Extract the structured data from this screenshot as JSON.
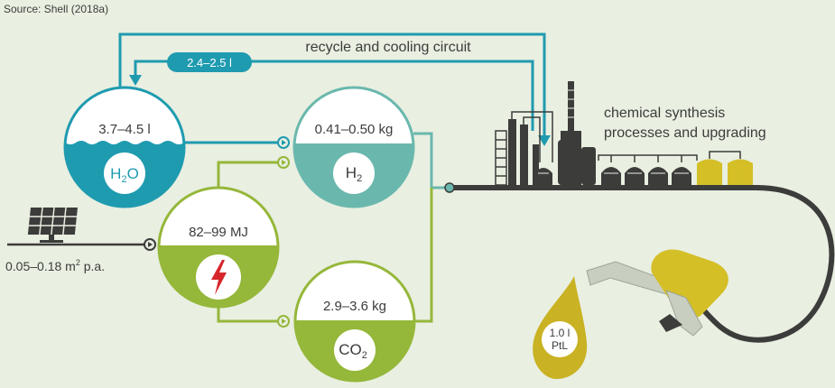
{
  "source_note": "Source: Shell (2018a)",
  "recycle": {
    "label": "recycle and cooling circuit",
    "badge": "2.4–2.5 l"
  },
  "water": {
    "amount": "3.7–4.5 l",
    "base": "H",
    "sub": "2",
    "tail": "O"
  },
  "hydrogen": {
    "amount": "0.41–0.50 kg",
    "base": "H",
    "sub": "2"
  },
  "electricity": {
    "amount": "82–99 MJ"
  },
  "co2": {
    "amount": "2.9–3.6 kg",
    "base": "CO",
    "sub": "2"
  },
  "solar": {
    "text": "0.05–0.18 m",
    "sup": "2",
    "suffix": " p.a."
  },
  "synthesis": {
    "line1": "chemical synthesis",
    "line2": "processes and upgrading"
  },
  "product": {
    "line1": "1.0 l",
    "line2": "PtL"
  },
  "colors": {
    "background": "#e9efe1",
    "teal": "#1f9bb0",
    "teal_light": "#6ab8ad",
    "green": "#95b73a",
    "dark": "#3c3c3b",
    "yellow": "#d4bf27",
    "red": "#d7262b"
  }
}
